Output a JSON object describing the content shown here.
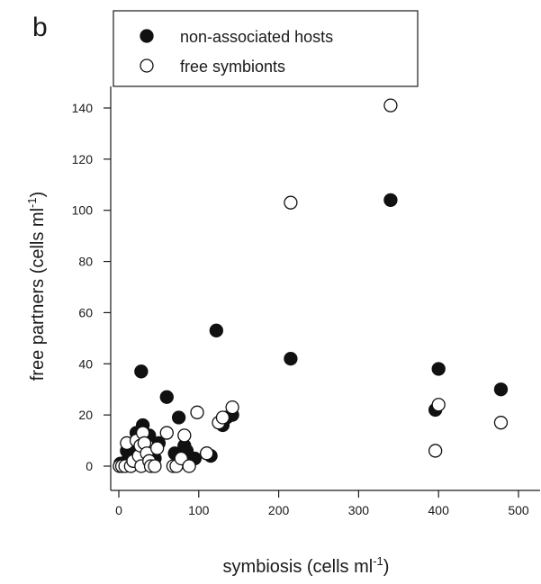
{
  "chart_data": {
    "type": "scatter",
    "panel_label": "b",
    "xlabel": "symbiosis (cells ml",
    "xlabel_sup": "-1",
    "xlabel_end": ")",
    "ylabel": "free partners (cells ml",
    "ylabel_sup": "-1",
    "ylabel_end": ")",
    "xlim": [
      0,
      500
    ],
    "ylim": [
      -8,
      148
    ],
    "xticks": [
      0,
      100,
      200,
      300,
      400,
      500
    ],
    "yticks": [
      0,
      20,
      40,
      60,
      80,
      100,
      120,
      140
    ],
    "grid": false,
    "legend_position": "top-left",
    "series": [
      {
        "name": "non-associated hosts",
        "marker": "filled-circle",
        "color": "#111111",
        "points": [
          [
            2,
            1
          ],
          [
            5,
            1
          ],
          [
            10,
            6
          ],
          [
            12,
            3
          ],
          [
            15,
            0
          ],
          [
            18,
            8
          ],
          [
            20,
            5
          ],
          [
            22,
            13
          ],
          [
            25,
            10
          ],
          [
            28,
            37
          ],
          [
            30,
            16
          ],
          [
            32,
            5
          ],
          [
            35,
            4
          ],
          [
            38,
            12
          ],
          [
            40,
            2
          ],
          [
            45,
            3
          ],
          [
            50,
            9
          ],
          [
            60,
            27
          ],
          [
            70,
            5
          ],
          [
            75,
            19
          ],
          [
            78,
            5
          ],
          [
            82,
            8
          ],
          [
            85,
            6
          ],
          [
            95,
            3
          ],
          [
            110,
            5
          ],
          [
            115,
            4
          ],
          [
            122,
            53
          ],
          [
            130,
            16
          ],
          [
            135,
            19
          ],
          [
            142,
            20
          ],
          [
            215,
            42
          ],
          [
            340,
            104
          ],
          [
            396,
            22
          ],
          [
            400,
            38
          ],
          [
            478,
            30
          ]
        ]
      },
      {
        "name": "free symbionts",
        "marker": "open-circle",
        "color": "#111111",
        "points": [
          [
            1,
            0
          ],
          [
            4,
            0
          ],
          [
            8,
            0
          ],
          [
            10,
            9
          ],
          [
            15,
            0
          ],
          [
            18,
            2
          ],
          [
            22,
            10
          ],
          [
            25,
            4
          ],
          [
            27,
            8
          ],
          [
            28,
            0
          ],
          [
            30,
            13
          ],
          [
            32,
            9
          ],
          [
            35,
            5
          ],
          [
            38,
            2
          ],
          [
            40,
            0
          ],
          [
            45,
            0
          ],
          [
            48,
            7
          ],
          [
            60,
            13
          ],
          [
            68,
            0
          ],
          [
            72,
            0
          ],
          [
            78,
            3
          ],
          [
            82,
            12
          ],
          [
            88,
            0
          ],
          [
            98,
            21
          ],
          [
            110,
            5
          ],
          [
            125,
            17
          ],
          [
            130,
            19
          ],
          [
            142,
            23
          ],
          [
            215,
            103
          ],
          [
            340,
            141
          ],
          [
            396,
            6
          ],
          [
            400,
            24
          ],
          [
            478,
            17
          ]
        ]
      }
    ]
  }
}
